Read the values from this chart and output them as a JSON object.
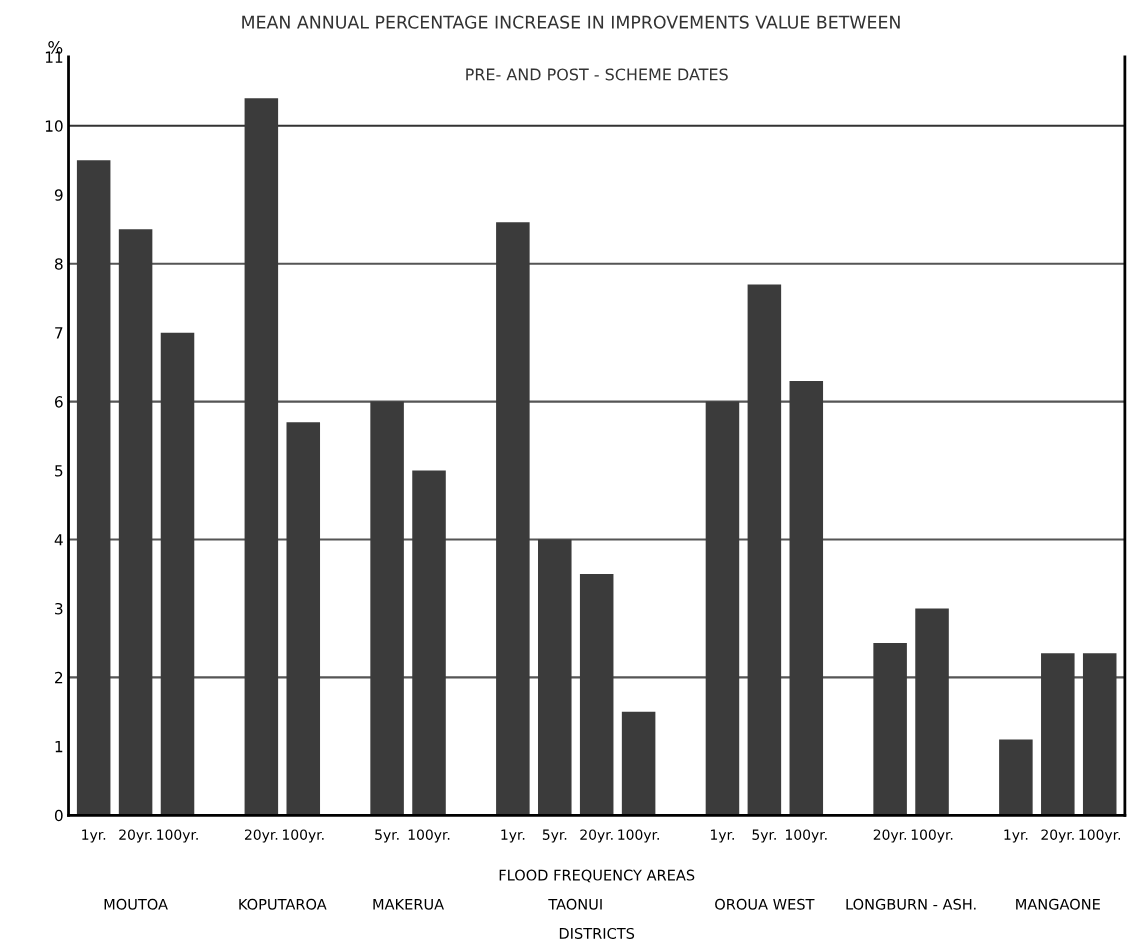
{
  "chart_data": {
    "type": "bar",
    "title": "MEAN ANNUAL PERCENTAGE INCREASE IN IMPROVEMENTS VALUE BETWEEN",
    "subtitle": "PRE- AND POST - SCHEME DATES",
    "ylabel": "%",
    "categories": [
      "1yr.",
      "20yr.",
      "100yr.",
      null,
      "20yr.",
      "100yr.",
      null,
      "5yr.",
      "100yr.",
      null,
      "1yr.",
      "5yr.",
      "20yr.",
      "100yr.",
      null,
      "1yr.",
      "5yr.",
      "100yr.",
      null,
      "20yr.",
      "100yr.",
      null,
      "1yr.",
      "20yr.",
      "100yr."
    ],
    "values": [
      9.5,
      8.5,
      7.0,
      null,
      10.4,
      5.7,
      null,
      6.0,
      5.0,
      null,
      8.6,
      4.0,
      3.5,
      1.5,
      null,
      6.0,
      7.7,
      6.3,
      null,
      2.5,
      3.0,
      null,
      1.1,
      2.35,
      2.35
    ],
    "color": "#3b3b3b",
    "ylim": [
      0,
      11
    ],
    "yticks": [
      0,
      1,
      2,
      3,
      4,
      5,
      6,
      7,
      8,
      9,
      10,
      11
    ],
    "ref_lines": [
      {
        "axis": "y",
        "value": 2,
        "label": null,
        "color": "#555555"
      },
      {
        "axis": "y",
        "value": 4,
        "label": null,
        "color": "#555555"
      },
      {
        "axis": "y",
        "value": 6,
        "label": null,
        "color": "#555555"
      },
      {
        "axis": "y",
        "value": 8,
        "label": null,
        "color": "#555555"
      },
      {
        "axis": "y",
        "value": 10,
        "label": null,
        "color": "#333333"
      }
    ],
    "annotations": [
      "MOUTOA",
      "KOPUTAROA",
      "MAKERUA",
      "TAONUI",
      "OROUA WEST",
      "LONGBURN - ASH.",
      "MANGAONE",
      "FLOOD FREQUENCY AREAS",
      "DISTRICTS"
    ],
    "grid": false,
    "legend": false
  }
}
